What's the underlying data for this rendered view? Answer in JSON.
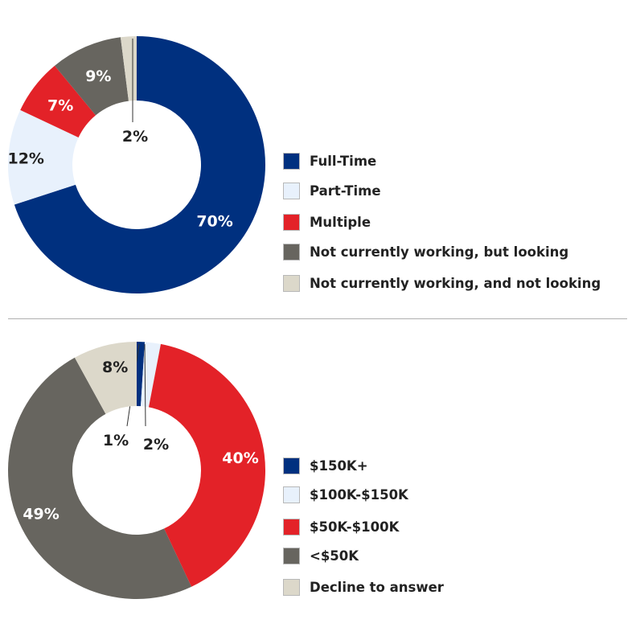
{
  "chart_data": [
    {
      "type": "pie",
      "donut": true,
      "title": "",
      "categories": [
        "Full-Time",
        "Part-Time",
        "Multiple",
        "Not currently working, but looking",
        "Not currently working, and not looking"
      ],
      "values": [
        70,
        12,
        7,
        9,
        2
      ],
      "value_labels": [
        "70%",
        "12%",
        "7%",
        "9%",
        "2%"
      ],
      "colors": [
        "#00307f",
        "#e8f1fc",
        "#e32228",
        "#67655f",
        "#dcd8ca"
      ],
      "legend_position": "right"
    },
    {
      "type": "pie",
      "donut": true,
      "title": "",
      "categories": [
        "$150K+",
        "$100K-$150K",
        "$50K-$100K",
        "<$50K",
        "Decline to answer"
      ],
      "values": [
        1,
        2,
        40,
        49,
        8
      ],
      "value_labels": [
        "1%",
        "2%",
        "40%",
        "49%",
        "8%"
      ],
      "colors": [
        "#00307f",
        "#e8f1fc",
        "#e32228",
        "#67655f",
        "#dcd8ca"
      ],
      "legend_position": "right"
    }
  ]
}
